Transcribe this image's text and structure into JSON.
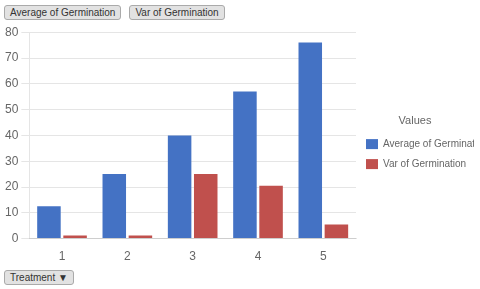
{
  "chart_data": {
    "type": "bar",
    "categories": [
      "1",
      "2",
      "3",
      "4",
      "5"
    ],
    "series": [
      {
        "name": "Average of Germination",
        "color": "#4472C4",
        "values": [
          12.5,
          25,
          40,
          57,
          76
        ]
      },
      {
        "name": "Var of Germination",
        "color": "#C0504D",
        "values": [
          1.2,
          1.2,
          25,
          20.5,
          5.5
        ]
      }
    ],
    "ylim": [
      0,
      80
    ],
    "yticks": [
      0,
      10,
      20,
      30,
      40,
      50,
      60,
      70,
      80
    ],
    "grid": true,
    "legend": "right",
    "legend_title": "Values",
    "x_label": "Treatment  ▼",
    "annotations": [
      "Average of Germination",
      "Var of Germination"
    ]
  }
}
